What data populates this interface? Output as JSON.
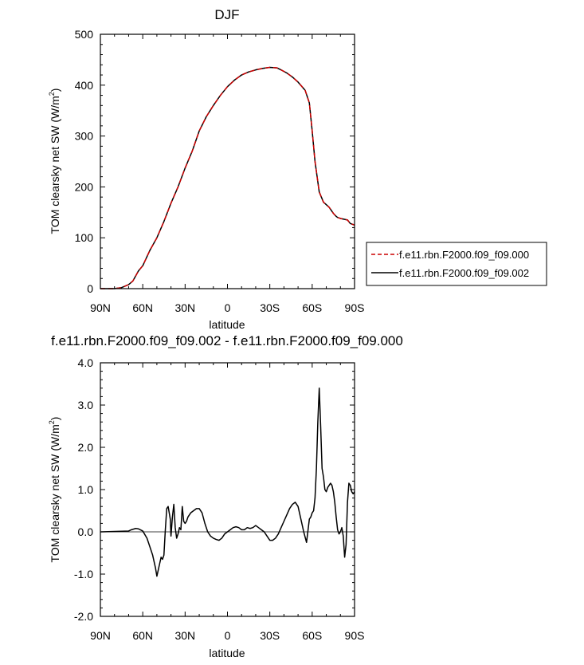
{
  "chart_data": [
    {
      "type": "line",
      "title": "DJF",
      "xlabel": "latitude",
      "ylabel": "TOM clearsky net SW (W/m²)",
      "ylabel_base": "TOM clearsky net SW (W/m",
      "ylabel_sup": "2",
      "ylabel_end": ")",
      "xlim": [
        90,
        -90
      ],
      "ylim": [
        0,
        500
      ],
      "x_ticks": [
        {
          "value": 90,
          "label": "90N"
        },
        {
          "value": 60,
          "label": "60N"
        },
        {
          "value": 30,
          "label": "30N"
        },
        {
          "value": 0,
          "label": "0"
        },
        {
          "value": -30,
          "label": "30S"
        },
        {
          "value": -60,
          "label": "60S"
        },
        {
          "value": -90,
          "label": "90S"
        }
      ],
      "y_ticks": [
        {
          "value": 0,
          "label": "0"
        },
        {
          "value": 100,
          "label": "100"
        },
        {
          "value": 200,
          "label": "200"
        },
        {
          "value": 300,
          "label": "300"
        },
        {
          "value": 400,
          "label": "400"
        },
        {
          "value": 500,
          "label": "500"
        }
      ],
      "legend": {
        "placement": "right"
      },
      "series": [
        {
          "name": "f.e11.rbn.F2000.f09_f09.000",
          "color": "#cc0000",
          "dash": "dashed",
          "x": [
            90,
            80,
            75,
            70,
            67,
            65,
            63,
            60,
            55,
            50,
            45,
            40,
            35,
            30,
            25,
            20,
            15,
            10,
            5,
            0,
            -5,
            -10,
            -15,
            -20,
            -25,
            -30,
            -35,
            -38,
            -42,
            -46,
            -50,
            -55,
            -58,
            -60,
            -62,
            -65,
            -68,
            -70,
            -72,
            -75,
            -77,
            -78,
            -80,
            -85,
            -87,
            -90
          ],
          "y": [
            0,
            0,
            2,
            8,
            15,
            25,
            35,
            45,
            75,
            100,
            132,
            168,
            200,
            237,
            270,
            310,
            338,
            360,
            380,
            397,
            410,
            420,
            426,
            430,
            433,
            435,
            434,
            430,
            424,
            416,
            406,
            390,
            365,
            310,
            250,
            190,
            170,
            165,
            160,
            148,
            142,
            140,
            138,
            135,
            128,
            125
          ]
        },
        {
          "name": "f.e11.rbn.F2000.f09_f09.002",
          "color": "#000000",
          "dash": "solid",
          "x": [
            90,
            80,
            75,
            70,
            67,
            65,
            63,
            60,
            55,
            50,
            45,
            40,
            35,
            30,
            25,
            20,
            15,
            10,
            5,
            0,
            -5,
            -10,
            -15,
            -20,
            -25,
            -30,
            -35,
            -38,
            -42,
            -46,
            -50,
            -55,
            -58,
            -60,
            -62,
            -65,
            -68,
            -70,
            -72,
            -75,
            -77,
            -78,
            -80,
            -85,
            -87,
            -90
          ],
          "y": [
            0,
            0,
            2,
            8,
            15,
            25,
            35,
            45,
            75,
            100,
            132,
            168,
            200,
            237,
            270,
            310,
            338,
            360,
            380,
            397,
            410,
            420,
            426,
            430,
            433,
            435,
            434,
            430,
            424,
            416,
            406,
            390,
            365,
            310,
            250,
            190,
            170,
            165,
            160,
            148,
            142,
            140,
            138,
            135,
            128,
            125
          ]
        }
      ]
    },
    {
      "type": "line",
      "title": "f.e11.rbn.F2000.f09_f09.002 - f.e11.rbn.F2000.f09_f09.000",
      "xlabel": "latitude",
      "ylabel": "TOM clearsky net SW (W/m²)",
      "ylabel_base": "TOM clearsky net SW (W/m",
      "ylabel_sup": "2",
      "ylabel_end": ")",
      "xlim": [
        90,
        -90
      ],
      "ylim": [
        -2,
        4
      ],
      "x_ticks": [
        {
          "value": 90,
          "label": "90N"
        },
        {
          "value": 60,
          "label": "60N"
        },
        {
          "value": 30,
          "label": "30N"
        },
        {
          "value": 0,
          "label": "0"
        },
        {
          "value": -30,
          "label": "30S"
        },
        {
          "value": -60,
          "label": "60S"
        },
        {
          "value": -90,
          "label": "90S"
        }
      ],
      "y_ticks": [
        {
          "value": -2,
          "label": "-2.0"
        },
        {
          "value": -1,
          "label": "-1.0"
        },
        {
          "value": 0,
          "label": "0.0"
        },
        {
          "value": 1,
          "label": "1.0"
        },
        {
          "value": 2,
          "label": "2.0"
        },
        {
          "value": 3,
          "label": "3.0"
        },
        {
          "value": 4,
          "label": "4.0"
        }
      ],
      "series": [
        {
          "color": "#000000",
          "dash": "solid",
          "x": [
            90,
            70,
            68,
            65,
            63,
            60,
            57,
            55,
            53,
            51,
            50,
            48,
            47,
            46,
            45,
            44,
            43,
            42,
            41,
            40.5,
            40,
            39,
            38,
            37,
            36,
            35,
            34,
            33,
            32,
            31,
            30,
            29,
            28,
            27,
            26,
            24,
            22,
            20,
            18,
            16,
            14,
            12,
            10,
            8,
            6,
            4,
            2,
            0,
            -2,
            -4,
            -6,
            -8,
            -10,
            -12,
            -14,
            -16,
            -18,
            -20,
            -22,
            -24,
            -26,
            -28,
            -30,
            -32,
            -34,
            -36,
            -38,
            -40,
            -42,
            -44,
            -46,
            -48,
            -50,
            -52,
            -54,
            -56,
            -58,
            -59,
            -60,
            -61,
            -62,
            -63,
            -64,
            -65,
            -66,
            -67,
            -68,
            -69,
            -70,
            -71,
            -72,
            -73,
            -74,
            -75,
            -76,
            -77,
            -78,
            -79,
            -80,
            -81,
            -82,
            -83,
            -84,
            -85,
            -86,
            -87,
            -88,
            -89,
            -90
          ],
          "y": [
            0,
            0.02,
            0.05,
            0.08,
            0.07,
            0.02,
            -0.15,
            -0.35,
            -0.55,
            -0.85,
            -1.05,
            -0.75,
            -0.6,
            -0.65,
            -0.55,
            0.05,
            0.55,
            0.6,
            0.4,
            0.3,
            -0.1,
            0.35,
            0.65,
            0.1,
            -0.15,
            -0.05,
            0.1,
            0.05,
            0.6,
            0.25,
            0.2,
            0.25,
            0.35,
            0.4,
            0.45,
            0.5,
            0.55,
            0.55,
            0.45,
            0.2,
            0.0,
            -0.1,
            -0.15,
            -0.18,
            -0.2,
            -0.15,
            -0.05,
            0.0,
            0.05,
            0.1,
            0.12,
            0.1,
            0.05,
            0.05,
            0.1,
            0.08,
            0.1,
            0.15,
            0.1,
            0.05,
            0.0,
            -0.1,
            -0.2,
            -0.2,
            -0.15,
            -0.05,
            0.1,
            0.25,
            0.4,
            0.55,
            0.65,
            0.7,
            0.6,
            0.3,
            0.0,
            -0.25,
            0.3,
            0.35,
            0.45,
            0.5,
            0.8,
            1.5,
            2.6,
            3.4,
            2.5,
            1.5,
            1.3,
            1.0,
            0.95,
            1.05,
            1.1,
            1.15,
            1.1,
            0.95,
            0.7,
            0.35,
            0.05,
            -0.05,
            0.0,
            0.1,
            -0.1,
            -0.6,
            -0.3,
            0.7,
            1.15,
            1.1,
            0.95,
            0.9,
            0.95
          ]
        }
      ]
    }
  ],
  "legend_icons": [
    "dashed-line-swatch",
    "solid-line-swatch"
  ]
}
